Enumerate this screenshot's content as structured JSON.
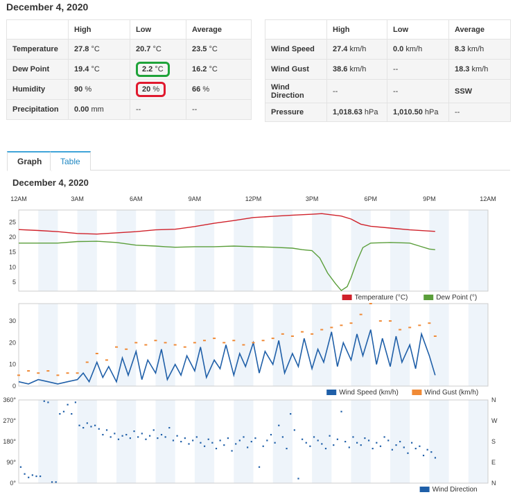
{
  "date": "December 4, 2020",
  "left_table": {
    "headers": [
      "",
      "High",
      "Low",
      "Average"
    ],
    "rows": [
      {
        "label": "Temperature",
        "high": "27.8",
        "high_u": "°C",
        "low": "20.7",
        "low_u": "°C",
        "avg": "23.5",
        "avg_u": "°C"
      },
      {
        "label": "Dew Point",
        "high": "19.4",
        "high_u": "°C",
        "low": "2.2",
        "low_u": "°C",
        "avg": "16.2",
        "avg_u": "°C"
      },
      {
        "label": "Humidity",
        "high": "90",
        "high_u": "%",
        "low": "20",
        "low_u": "%",
        "avg": "66",
        "avg_u": "%"
      },
      {
        "label": "Precipitation",
        "high": "0.00",
        "high_u": "mm",
        "low": "--",
        "low_u": "",
        "avg": "--",
        "avg_u": ""
      }
    ]
  },
  "right_table": {
    "headers": [
      "",
      "High",
      "Low",
      "Average"
    ],
    "rows": [
      {
        "label": "Wind Speed",
        "high": "27.4",
        "high_u": "km/h",
        "low": "0.0",
        "low_u": "km/h",
        "avg": "8.3",
        "avg_u": "km/h"
      },
      {
        "label": "Wind Gust",
        "high": "38.6",
        "high_u": "km/h",
        "low": "--",
        "low_u": "",
        "avg": "18.3",
        "avg_u": "km/h"
      },
      {
        "label": "Wind Direction",
        "high": "--",
        "high_u": "",
        "low": "--",
        "low_u": "",
        "avg": "SSW",
        "avg_u": ""
      },
      {
        "label": "Pressure",
        "high": "1,018.63",
        "high_u": "hPa",
        "low": "1,010.50",
        "low_u": "hPa",
        "avg": "--",
        "avg_u": ""
      }
    ]
  },
  "tabs": [
    {
      "label": "Graph",
      "active": true
    },
    {
      "label": "Table",
      "active": false
    }
  ],
  "graph_title": "December 4, 2020",
  "colors": {
    "temperature": "#d0212a",
    "dew_point": "#5a9e3a",
    "wind_speed": "#1f5fa8",
    "wind_gust": "#f08a36",
    "wind_dir": "#1f5fa8",
    "highlight_green": "#1fa33a",
    "highlight_red": "#e0192e"
  },
  "chart_data": [
    {
      "type": "line",
      "x_ticks": [
        "12AM",
        "3AM",
        "6AM",
        "9AM",
        "12PM",
        "3PM",
        "6PM",
        "9PM",
        "12AM"
      ],
      "y_ticks": [
        "5",
        "10",
        "15",
        "20",
        "25"
      ],
      "ylim": [
        2,
        29
      ],
      "xlim_hours": [
        0,
        24
      ],
      "series": [
        {
          "name": "Temperature (°C)",
          "color": "#d0212a",
          "x": [
            0,
            1,
            2,
            3,
            4,
            5,
            6,
            7,
            8,
            9,
            10,
            11,
            12,
            13,
            14,
            15,
            15.5,
            16,
            16.5,
            17,
            17.5,
            18,
            19,
            20,
            21,
            21.3
          ],
          "y": [
            22.5,
            22.2,
            21.8,
            21.2,
            21.0,
            21.4,
            21.8,
            22.4,
            22.6,
            23.5,
            24.6,
            25.5,
            26.5,
            26.9,
            27.3,
            27.6,
            27.8,
            27.4,
            27.0,
            26.0,
            24.3,
            23.6,
            23.0,
            22.4,
            22.0,
            21.9
          ]
        },
        {
          "name": "Dew Point (°)",
          "color": "#5a9e3a",
          "x": [
            0,
            1,
            2,
            3,
            4,
            5,
            6,
            7,
            7.5,
            8,
            9,
            10,
            11,
            12,
            13,
            14,
            14.5,
            15,
            15.4,
            15.8,
            16.2,
            16.5,
            16.8,
            17.0,
            17.3,
            17.6,
            18,
            19,
            20,
            20.5,
            21,
            21.3
          ],
          "y": [
            18.0,
            18.0,
            18.0,
            18.5,
            18.6,
            18.2,
            17.3,
            17.0,
            16.8,
            16.6,
            16.8,
            16.8,
            17.0,
            16.8,
            16.6,
            16.3,
            15.8,
            15.5,
            13.0,
            8.0,
            4.5,
            2.2,
            3.5,
            6.5,
            12.0,
            16.5,
            18.0,
            18.2,
            18.0,
            17.0,
            16.0,
            15.8
          ]
        }
      ]
    },
    {
      "type": "line",
      "x_ticks": [],
      "y_ticks": [
        "0",
        "10",
        "20",
        "30"
      ],
      "ylim": [
        0,
        38
      ],
      "xlim_hours": [
        0,
        24
      ],
      "series": [
        {
          "name": "Wind Speed (km/h)",
          "color": "#1f5fa8",
          "x": [
            0,
            0.5,
            1,
            1.5,
            2,
            2.5,
            3,
            3.3,
            3.6,
            4,
            4.3,
            4.6,
            5,
            5.3,
            5.6,
            6,
            6.3,
            6.6,
            7,
            7.3,
            7.6,
            8,
            8.3,
            8.6,
            9,
            9.3,
            9.6,
            10,
            10.3,
            10.6,
            11,
            11.3,
            11.6,
            12,
            12.3,
            12.6,
            13,
            13.3,
            13.6,
            14,
            14.3,
            14.6,
            15,
            15.3,
            15.6,
            16,
            16.3,
            16.6,
            17,
            17.3,
            17.6,
            18,
            18.3,
            18.6,
            19,
            19.3,
            19.6,
            20,
            20.3,
            20.6,
            21,
            21.3
          ],
          "y": [
            2,
            1,
            3,
            2,
            1,
            2,
            3,
            6,
            2,
            11,
            4,
            9,
            2,
            13,
            5,
            16,
            3,
            12,
            6,
            17,
            3,
            10,
            5,
            14,
            7,
            18,
            4,
            12,
            8,
            19,
            5,
            15,
            9,
            20,
            6,
            16,
            10,
            21,
            6,
            15,
            9,
            22,
            8,
            17,
            11,
            25,
            9,
            20,
            12,
            24,
            14,
            26,
            10,
            22,
            9,
            23,
            11,
            19,
            8,
            24,
            14,
            5
          ]
        },
        {
          "name": "Wind Gust (km/h)",
          "color": "#f08a36",
          "x": [
            0,
            0.5,
            1,
            1.5,
            2,
            2.5,
            3,
            3.5,
            4,
            4.5,
            5,
            5.5,
            6,
            6.5,
            7,
            7.5,
            8,
            8.5,
            9,
            9.5,
            10,
            10.5,
            11,
            11.5,
            12,
            12.5,
            13,
            13.5,
            14,
            14.5,
            15,
            15.5,
            16,
            16.5,
            17,
            17.5,
            18,
            18.5,
            19,
            19.5,
            20,
            20.5,
            21,
            21.3
          ],
          "y": [
            5,
            7,
            6,
            7,
            5,
            6,
            6,
            11,
            15,
            12,
            18,
            17,
            20,
            19,
            21,
            20,
            19,
            18,
            20,
            21,
            22,
            20,
            21,
            19,
            20,
            21,
            22,
            24,
            23,
            25,
            24,
            26,
            27,
            28,
            29,
            33,
            38,
            30,
            30,
            26,
            27,
            28,
            29,
            23
          ]
        }
      ]
    },
    {
      "type": "scatter",
      "y_ticks": [
        "0°",
        "90°",
        "180°",
        "270°",
        "360°"
      ],
      "y_ticks_right": [
        "N",
        "E",
        "S",
        "W",
        "N"
      ],
      "ylim": [
        0,
        360
      ],
      "xlim_hours": [
        0,
        24
      ],
      "series": [
        {
          "name": "Wind Direction",
          "color": "#1f5fa8",
          "x": [
            0.1,
            0.3,
            0.5,
            0.7,
            0.9,
            1.1,
            1.3,
            1.5,
            1.7,
            1.9,
            2.1,
            2.3,
            2.5,
            2.7,
            2.9,
            3.1,
            3.3,
            3.5,
            3.7,
            3.9,
            4.1,
            4.3,
            4.5,
            4.7,
            4.9,
            5.1,
            5.3,
            5.5,
            5.7,
            5.9,
            6.1,
            6.3,
            6.5,
            6.7,
            6.9,
            7.1,
            7.3,
            7.5,
            7.7,
            7.9,
            8.1,
            8.3,
            8.5,
            8.7,
            8.9,
            9.1,
            9.3,
            9.5,
            9.7,
            9.9,
            10.1,
            10.3,
            10.5,
            10.7,
            10.9,
            11.1,
            11.3,
            11.5,
            11.7,
            11.9,
            12.1,
            12.3,
            12.5,
            12.7,
            12.9,
            13.1,
            13.3,
            13.5,
            13.7,
            13.9,
            14.1,
            14.3,
            14.5,
            14.7,
            14.9,
            15.1,
            15.3,
            15.5,
            15.7,
            15.9,
            16.1,
            16.3,
            16.5,
            16.7,
            16.9,
            17.1,
            17.3,
            17.5,
            17.7,
            17.9,
            18.1,
            18.3,
            18.5,
            18.7,
            18.9,
            19.1,
            19.3,
            19.5,
            19.7,
            19.9,
            20.1,
            20.3,
            20.5,
            20.7,
            20.9,
            21.1,
            21.3
          ],
          "y": [
            70,
            40,
            25,
            35,
            30,
            30,
            355,
            350,
            5,
            5,
            300,
            310,
            340,
            300,
            350,
            250,
            240,
            260,
            245,
            250,
            235,
            210,
            230,
            200,
            215,
            190,
            205,
            210,
            195,
            225,
            200,
            215,
            190,
            205,
            230,
            195,
            210,
            200,
            240,
            185,
            205,
            180,
            195,
            170,
            185,
            200,
            175,
            160,
            190,
            175,
            150,
            185,
            165,
            195,
            140,
            170,
            185,
            200,
            155,
            180,
            195,
            70,
            160,
            185,
            210,
            175,
            250,
            200,
            150,
            300,
            230,
            20,
            190,
            175,
            160,
            200,
            185,
            170,
            150,
            205,
            165,
            190,
            310,
            180,
            155,
            200,
            175,
            165,
            195,
            185,
            150,
            175,
            160,
            200,
            185,
            145,
            165,
            180,
            155,
            130,
            175,
            150,
            160,
            120,
            145,
            135,
            110
          ]
        }
      ]
    }
  ]
}
